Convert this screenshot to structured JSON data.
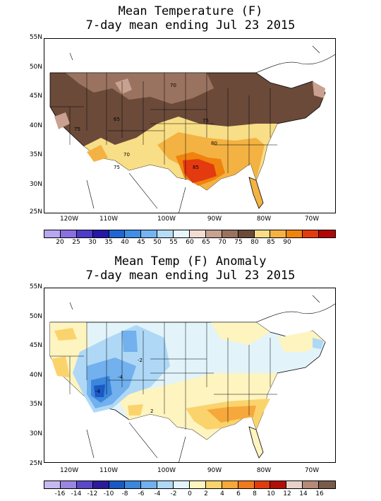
{
  "top": {
    "title_line1": "Mean Temperature (F)",
    "title_line2": "7-day mean ending Jul 23 2015",
    "lat_labels": [
      "55N",
      "50N",
      "45N",
      "40N",
      "35N",
      "30N",
      "25N"
    ],
    "lon_labels": [
      "120W",
      "110W",
      "100W",
      "90W",
      "80W",
      "70W"
    ],
    "contour_labels": [
      "70",
      "65",
      "75",
      "70",
      "75",
      "80",
      "85",
      "75"
    ],
    "colorbar": {
      "colors": [
        "#b8a6f2",
        "#8a6fe0",
        "#4d3cc8",
        "#2418a8",
        "#1f66d4",
        "#3f8fe6",
        "#74b4f2",
        "#b6dcf7",
        "#e8f6fb",
        "#f2dbd2",
        "#c8a190",
        "#9a7360",
        "#6b4a3a",
        "#f8de86",
        "#f4b242",
        "#f0820e",
        "#e43a10",
        "#b00808"
      ],
      "labels": [
        "20",
        "25",
        "30",
        "35",
        "40",
        "45",
        "50",
        "55",
        "60",
        "65",
        "70",
        "75",
        "80",
        "85",
        "90"
      ]
    }
  },
  "bottom": {
    "title_line1": "Mean Temp (F) Anomaly",
    "title_line2": "7-day mean ending Jul 23 2015",
    "lat_labels": [
      "55N",
      "50N",
      "45N",
      "40N",
      "35N",
      "30N",
      "25N"
    ],
    "lon_labels": [
      "120W",
      "110W",
      "100W",
      "90W",
      "80W",
      "70W"
    ],
    "contour_labels": [
      "-2",
      "-4",
      "-4",
      "2"
    ],
    "colorbar": {
      "colors": [
        "#c8b8f0",
        "#9a86e0",
        "#5a48c8",
        "#2a1c9a",
        "#1a58c4",
        "#3c86dc",
        "#72b0ee",
        "#aed8f6",
        "#e2f4fa",
        "#fef4c0",
        "#fbd36c",
        "#f6a83a",
        "#f07a1e",
        "#e03c10",
        "#b01008",
        "#e8d2c8",
        "#b48a78",
        "#7a5a4a"
      ],
      "labels": [
        "-16",
        "-14",
        "-12",
        "-10",
        "-8",
        "-6",
        "-4",
        "-2",
        "0",
        "2",
        "4",
        "6",
        "8",
        "10",
        "12",
        "14",
        "16"
      ]
    }
  }
}
